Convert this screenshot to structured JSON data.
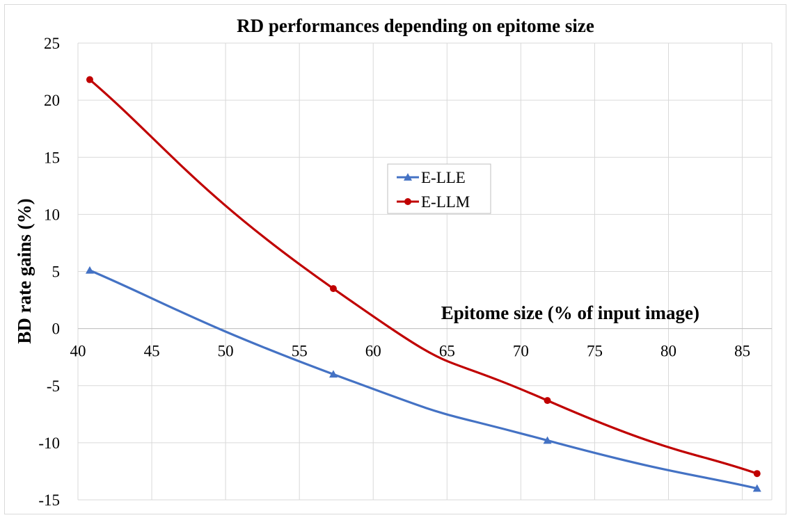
{
  "chart_data": {
    "type": "line",
    "title": "RD performances depending on epitome size",
    "xlabel": "Epitome size (% of input image)",
    "ylabel": "BD rate gains (%)",
    "xlim": [
      40,
      87
    ],
    "ylim": [
      -15,
      25
    ],
    "xticks": [
      40,
      45,
      50,
      55,
      60,
      65,
      70,
      75,
      80,
      85
    ],
    "yticks": [
      25,
      20,
      15,
      10,
      5,
      0,
      -5,
      -10,
      -15
    ],
    "grid": true,
    "smooth": true,
    "legend_position": "center",
    "series": [
      {
        "name": "E-LLE",
        "color": "#4472c4",
        "marker": "triangle",
        "x": [
          40.8,
          57.3,
          71.8,
          86.0
        ],
        "y": [
          5.1,
          -4.0,
          -9.8,
          -14.0
        ]
      },
      {
        "name": "E-LLM",
        "color": "#c00000",
        "marker": "circle",
        "x": [
          40.8,
          57.3,
          71.8,
          86.0
        ],
        "y": [
          21.8,
          3.5,
          -6.3,
          -12.7
        ]
      }
    ]
  }
}
